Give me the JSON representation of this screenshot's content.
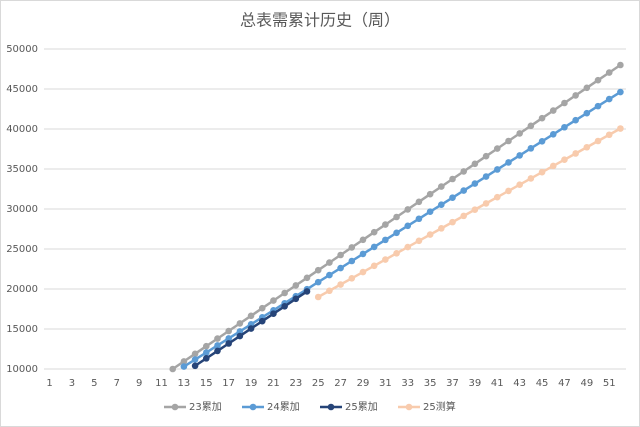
{
  "chart_data": {
    "type": "line",
    "title": "总表需累计历史（周）",
    "categories": [
      1,
      null,
      3,
      null,
      5,
      null,
      7,
      null,
      9,
      null,
      11,
      null,
      13,
      null,
      15,
      null,
      17,
      null,
      19,
      null,
      21,
      null,
      23,
      null,
      25,
      null,
      27,
      null,
      29,
      null,
      31,
      null,
      33,
      null,
      35,
      null,
      37,
      null,
      39,
      null,
      41,
      null,
      43,
      null,
      45,
      null,
      47,
      null,
      49,
      null,
      51,
      null
    ],
    "ylim": [
      10000,
      50000
    ],
    "yticks": [
      10000,
      15000,
      20000,
      25000,
      30000,
      35000,
      40000,
      45000,
      50000
    ],
    "grid": true,
    "legend": "bottom",
    "series": [
      {
        "name": "23累加",
        "color": "#a5a5a5",
        "values": [
          null,
          null,
          null,
          null,
          null,
          null,
          null,
          null,
          null,
          null,
          null,
          10000,
          10950,
          11900,
          12850,
          13800,
          14750,
          15700,
          16650,
          17600,
          18550,
          19500,
          20450,
          21400,
          22350,
          23300,
          24250,
          25200,
          26150,
          27100,
          28050,
          29000,
          29950,
          30900,
          31850,
          32800,
          33750,
          34700,
          35650,
          36600,
          37550,
          38500,
          39450,
          40400,
          41350,
          42300,
          43250,
          44200,
          45150,
          46100,
          47050,
          48000
        ]
      },
      {
        "name": "24累加",
        "color": "#5b9bd5",
        "values": [
          null,
          null,
          null,
          null,
          null,
          null,
          null,
          null,
          null,
          null,
          null,
          null,
          10300,
          11180,
          12060,
          12940,
          13820,
          14700,
          15580,
          16460,
          17340,
          18220,
          19100,
          19980,
          20860,
          21740,
          22620,
          23500,
          24380,
          25260,
          26140,
          27020,
          27900,
          28780,
          29660,
          30540,
          31420,
          32300,
          33180,
          34060,
          34940,
          35820,
          36700,
          37580,
          38460,
          39340,
          40220,
          41100,
          41980,
          42860,
          43740,
          44620
        ]
      },
      {
        "name": "25累加",
        "color": "#264478",
        "values": [
          null,
          null,
          null,
          null,
          null,
          null,
          null,
          null,
          null,
          null,
          null,
          null,
          null,
          10400,
          11330,
          12260,
          13190,
          14120,
          15050,
          15980,
          16910,
          17840,
          18770,
          19700,
          null,
          null,
          null,
          null,
          null,
          null,
          null,
          null,
          null,
          null,
          null,
          null,
          null,
          null,
          null,
          null,
          null,
          null,
          null,
          null,
          null,
          null,
          null,
          null,
          null,
          null,
          null,
          null
        ]
      },
      {
        "name": "25测算",
        "color": "#f8cbad",
        "values": [
          null,
          null,
          null,
          null,
          null,
          null,
          null,
          null,
          null,
          null,
          null,
          null,
          null,
          null,
          null,
          null,
          null,
          null,
          null,
          null,
          null,
          null,
          null,
          null,
          19000,
          19780,
          20560,
          21340,
          22120,
          22900,
          23680,
          24460,
          25240,
          26020,
          26800,
          27580,
          28360,
          29140,
          29920,
          30700,
          31480,
          32260,
          33040,
          33820,
          34600,
          35380,
          36160,
          36940,
          37720,
          38500,
          39280,
          40060
        ]
      }
    ]
  }
}
